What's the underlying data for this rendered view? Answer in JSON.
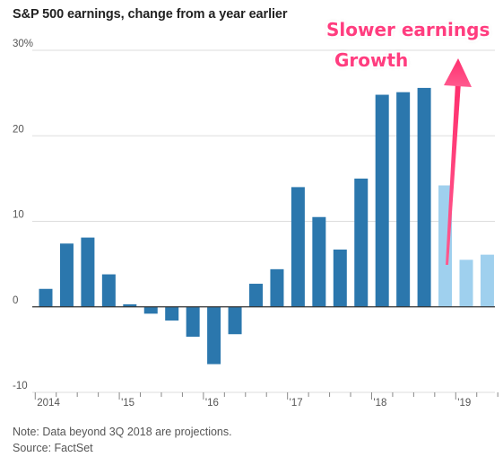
{
  "chart_data": {
    "type": "bar",
    "title": "S&P 500 earnings, change from a year earlier",
    "xlabel": "",
    "ylabel": "",
    "ylim": [
      -10,
      30
    ],
    "yticks": [
      {
        "value": 30,
        "label": "30%"
      },
      {
        "value": 20,
        "label": "20"
      },
      {
        "value": 10,
        "label": "10"
      },
      {
        "value": 0,
        "label": "0"
      },
      {
        "value": -10,
        "label": "-10"
      }
    ],
    "xtick_labels": [
      {
        "quarter_index": 0,
        "label": "2014"
      },
      {
        "quarter_index": 4,
        "label": "'15"
      },
      {
        "quarter_index": 8,
        "label": "'16"
      },
      {
        "quarter_index": 12,
        "label": "'17"
      },
      {
        "quarter_index": 16,
        "label": "'18"
      },
      {
        "quarter_index": 20,
        "label": "'19"
      }
    ],
    "grid": "horizontal",
    "colors": {
      "actual": "#2b77ad",
      "projection": "#9fd0ee",
      "grid": "#dddddd",
      "zero_line": "#333333"
    },
    "series": [
      {
        "name": "",
        "quarters": [
          "1Q 2014",
          "2Q 2014",
          "3Q 2014",
          "4Q 2014",
          "1Q 2015",
          "2Q 2015",
          "3Q 2015",
          "4Q 2015",
          "1Q 2016",
          "2Q 2016",
          "3Q 2016",
          "4Q 2016",
          "1Q 2017",
          "2Q 2017",
          "3Q 2017",
          "4Q 2017",
          "1Q 2018",
          "2Q 2018",
          "3Q 2018",
          "4Q 2018",
          "1Q 2019",
          "2Q 2019"
        ],
        "values": [
          2.1,
          7.4,
          8.1,
          3.8,
          0.3,
          -0.8,
          -1.6,
          -3.5,
          -6.7,
          -3.2,
          2.7,
          4.4,
          14.0,
          10.5,
          6.7,
          15.0,
          24.8,
          25.1,
          25.6,
          14.2,
          5.5,
          6.1
        ],
        "projection": [
          false,
          false,
          false,
          false,
          false,
          false,
          false,
          false,
          false,
          false,
          false,
          false,
          false,
          false,
          false,
          false,
          false,
          false,
          false,
          true,
          true,
          true
        ]
      }
    ],
    "annotations": {
      "line1": "Slower earnings",
      "line2": "Growth",
      "color": "#ff3d7f"
    }
  },
  "footer": {
    "note": "Note: Data beyond 3Q 2018 are projections.",
    "source": "Source: FactSet"
  }
}
